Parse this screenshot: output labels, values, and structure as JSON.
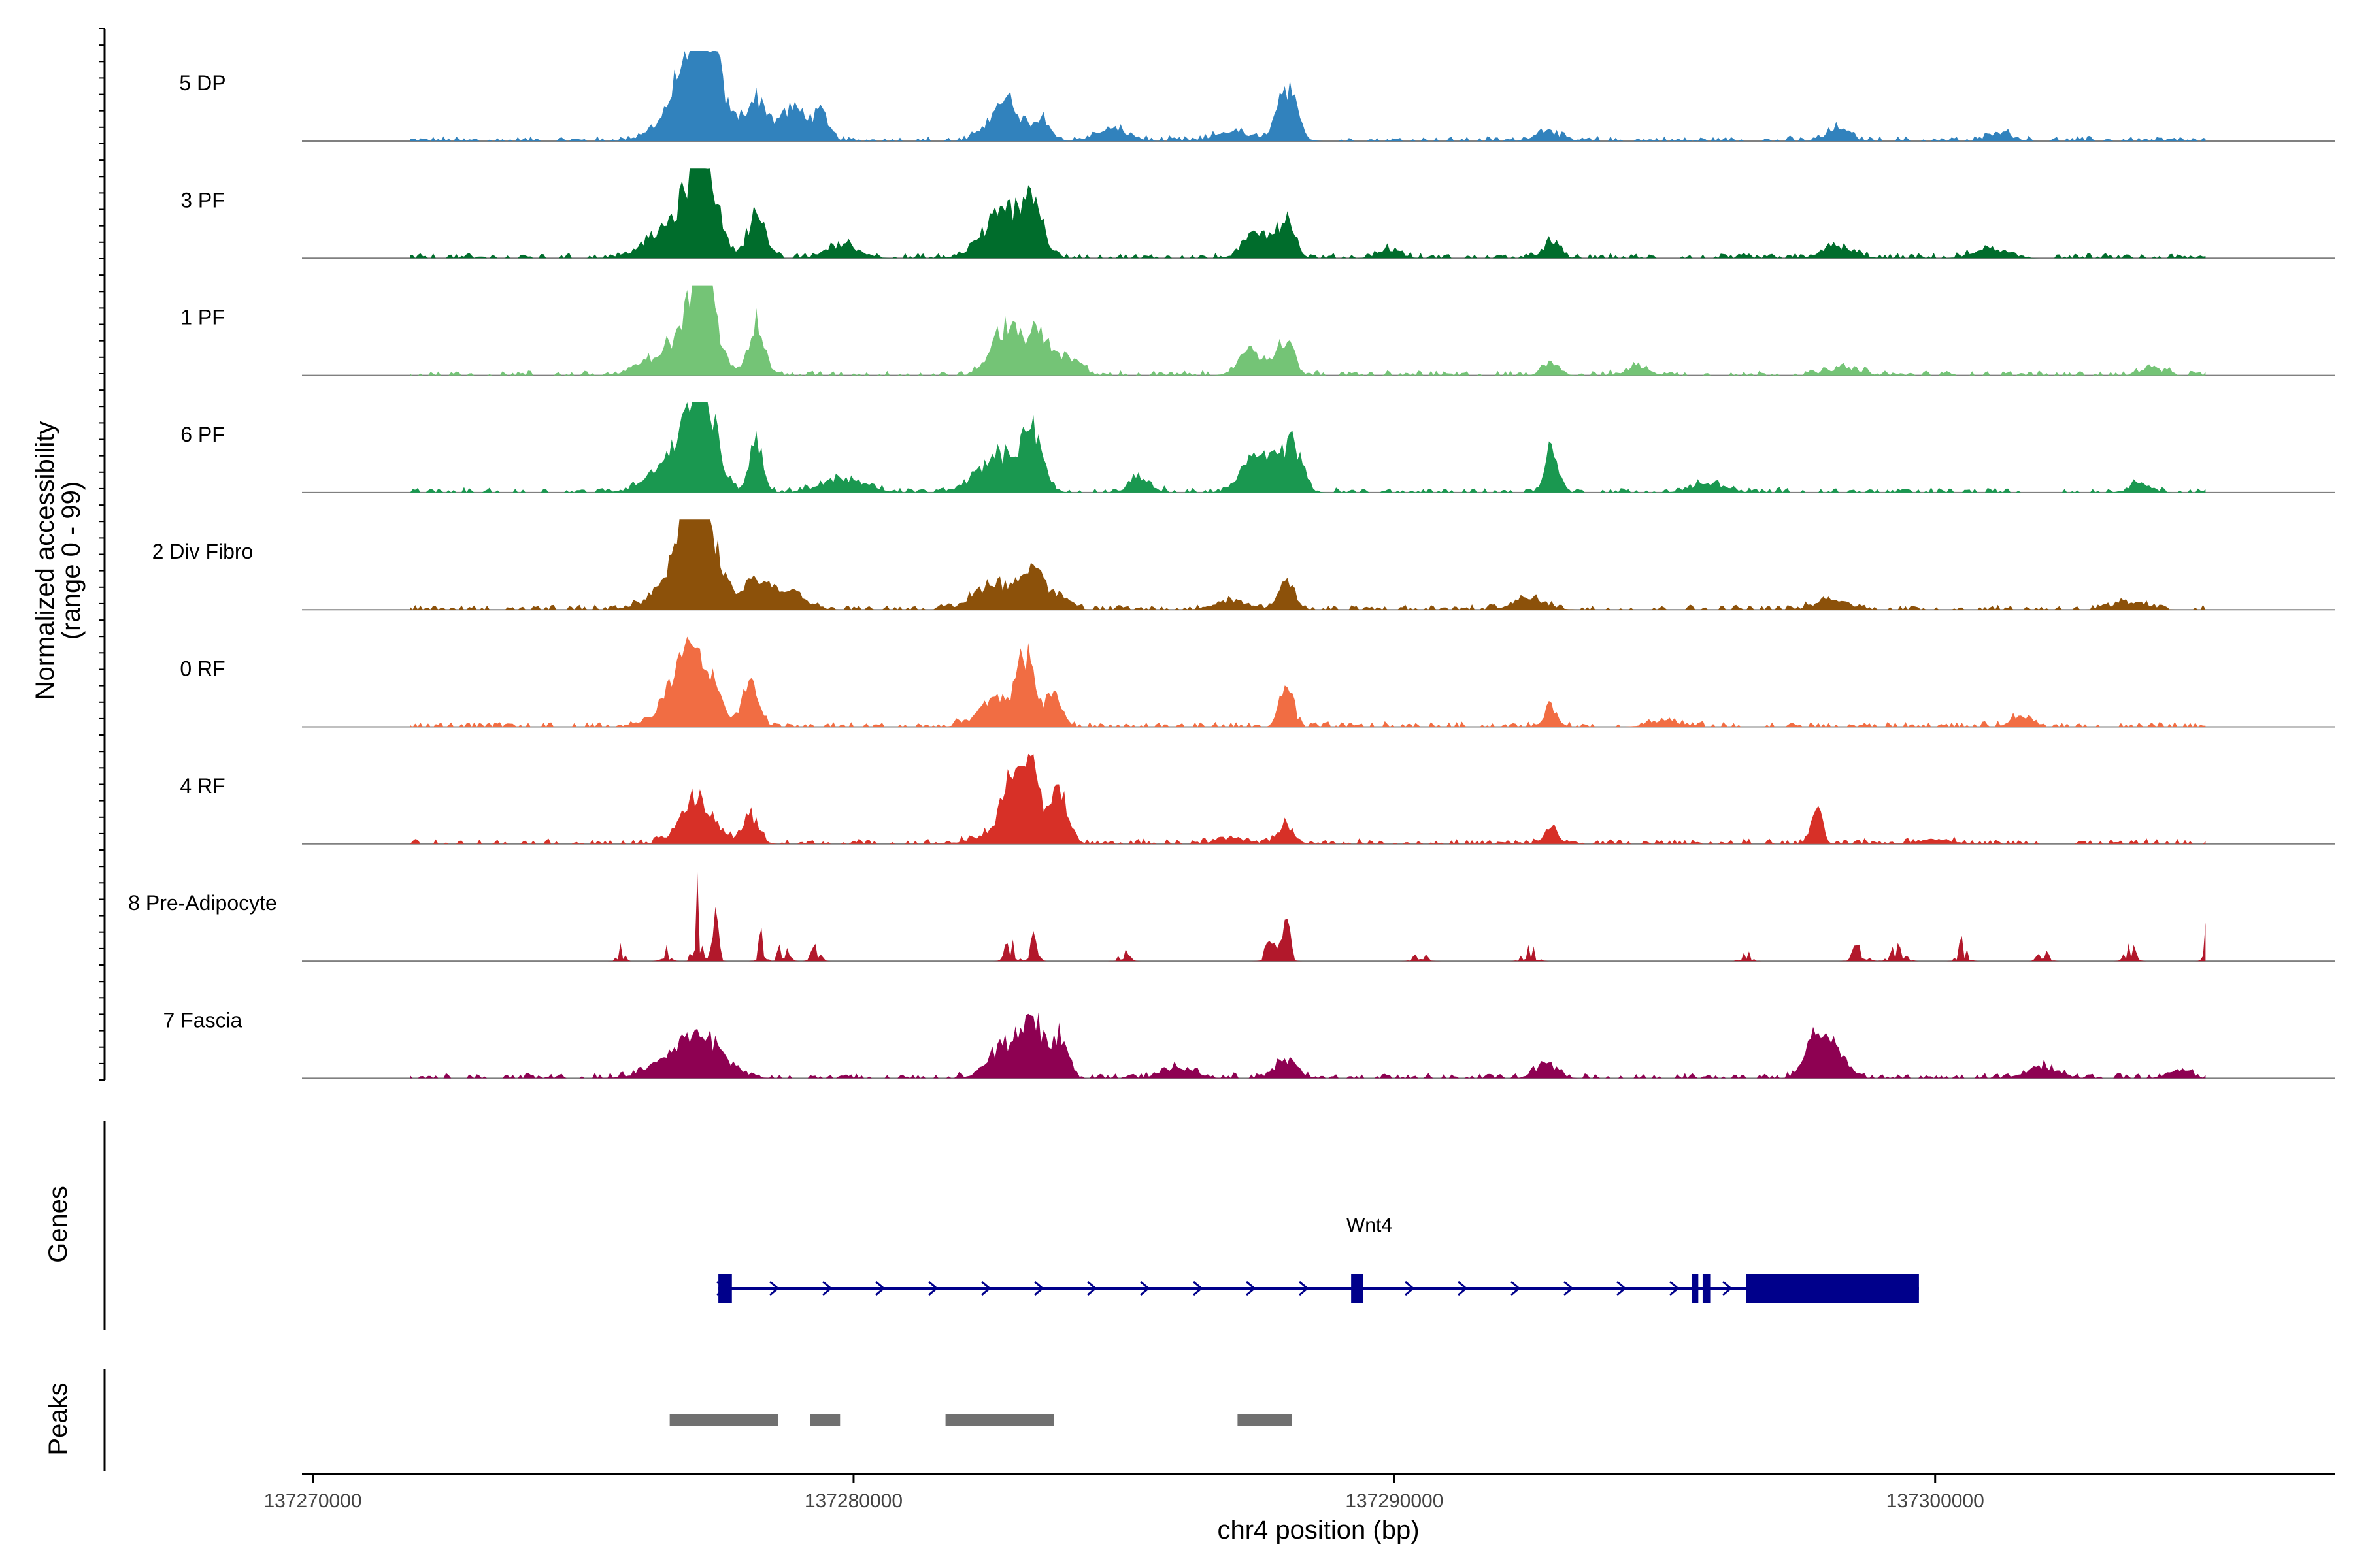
{
  "chart_data": {
    "type": "coverage",
    "xlabel": "chr4 position (bp)",
    "ylabel_line1": "Normalized accessibility",
    "ylabel_line2": "(range 0 - 99)",
    "genes_label": "Genes",
    "peaks_label": "Peaks",
    "xlim": [
      137269800,
      137307400
    ],
    "xticks": [
      {
        "value": 137270000,
        "label": "137270000"
      },
      {
        "value": 137280000,
        "label": "137280000"
      },
      {
        "value": 137290000,
        "label": "137290000"
      },
      {
        "value": 137300000,
        "label": "137300000"
      }
    ],
    "data_range": [
      137271800,
      137305000
    ],
    "tracks": [
      {
        "name": "5 DP",
        "color": "#3182bd",
        "peaks": [
          [
            137277200,
            0.95,
            280
          ],
          [
            137277000,
            0.55,
            450
          ],
          [
            137278200,
            0.45,
            200
          ],
          [
            137278900,
            0.35,
            250
          ],
          [
            137279400,
            0.25,
            150
          ],
          [
            137282800,
            0.45,
            280
          ],
          [
            137283500,
            0.25,
            150
          ],
          [
            137288000,
            0.6,
            180
          ],
          [
            137284800,
            0.12,
            300
          ],
          [
            137287000,
            0.1,
            300
          ],
          [
            137292800,
            0.12,
            200
          ],
          [
            137298200,
            0.14,
            200
          ],
          [
            137301200,
            0.1,
            200
          ]
        ]
      },
      {
        "name": "3 PF",
        "color": "#006d2c",
        "peaks": [
          [
            137277200,
            1.0,
            230
          ],
          [
            137276800,
            0.4,
            500
          ],
          [
            137278200,
            0.5,
            150
          ],
          [
            137279800,
            0.15,
            300
          ],
          [
            137282800,
            0.5,
            380
          ],
          [
            137283300,
            0.55,
            180
          ],
          [
            137287500,
            0.28,
            250
          ],
          [
            137288000,
            0.4,
            150
          ],
          [
            137292900,
            0.18,
            150
          ],
          [
            137289900,
            0.1,
            200
          ],
          [
            137298200,
            0.12,
            300
          ],
          [
            137301000,
            0.09,
            300
          ]
        ]
      },
      {
        "name": "1 PF",
        "color": "#74c476",
        "peaks": [
          [
            137277200,
            1.0,
            220
          ],
          [
            137276800,
            0.35,
            500
          ],
          [
            137278200,
            0.55,
            150
          ],
          [
            137282800,
            0.5,
            250
          ],
          [
            137283400,
            0.42,
            250
          ],
          [
            137284000,
            0.18,
            200
          ],
          [
            137287400,
            0.25,
            250
          ],
          [
            137288000,
            0.35,
            150
          ],
          [
            137292900,
            0.15,
            150
          ],
          [
            137294500,
            0.1,
            200
          ],
          [
            137298300,
            0.08,
            300
          ],
          [
            137304000,
            0.08,
            200
          ]
        ]
      },
      {
        "name": "6 PF",
        "color": "#1a9850",
        "peaks": [
          [
            137277200,
            1.0,
            230
          ],
          [
            137276800,
            0.45,
            450
          ],
          [
            137278200,
            0.6,
            120
          ],
          [
            137279800,
            0.15,
            400
          ],
          [
            137282700,
            0.4,
            400
          ],
          [
            137283300,
            0.6,
            180
          ],
          [
            137285300,
            0.15,
            200
          ],
          [
            137287500,
            0.4,
            300
          ],
          [
            137288100,
            0.5,
            180
          ],
          [
            137292900,
            0.5,
            120
          ],
          [
            137295800,
            0.1,
            300
          ],
          [
            137303800,
            0.1,
            200
          ]
        ]
      },
      {
        "name": "2 Div Fibro",
        "color": "#8c510a",
        "peaks": [
          [
            137277100,
            1.0,
            280
          ],
          [
            137277000,
            0.45,
            500
          ],
          [
            137278200,
            0.3,
            200
          ],
          [
            137278800,
            0.2,
            300
          ],
          [
            137282600,
            0.3,
            350
          ],
          [
            137283300,
            0.45,
            200
          ],
          [
            137283800,
            0.15,
            200
          ],
          [
            137288000,
            0.35,
            150
          ],
          [
            137287000,
            0.1,
            300
          ],
          [
            137292500,
            0.12,
            300
          ],
          [
            137298100,
            0.1,
            300
          ],
          [
            137303600,
            0.08,
            300
          ]
        ]
      },
      {
        "name": "0 RF",
        "color": "#f16d43",
        "peaks": [
          [
            137277100,
            0.7,
            300
          ],
          [
            137276800,
            0.3,
            400
          ],
          [
            137278100,
            0.45,
            150
          ],
          [
            137282700,
            0.3,
            350
          ],
          [
            137283200,
            0.7,
            150
          ],
          [
            137283700,
            0.35,
            150
          ],
          [
            137288000,
            0.5,
            120
          ],
          [
            137292900,
            0.2,
            120
          ],
          [
            137301600,
            0.1,
            200
          ],
          [
            137295000,
            0.06,
            300
          ]
        ]
      },
      {
        "name": "4 RF",
        "color": "#d73027",
        "peaks": [
          [
            137277100,
            0.5,
            300
          ],
          [
            137278100,
            0.3,
            150
          ],
          [
            137282900,
            0.6,
            160
          ],
          [
            137283300,
            1.0,
            120
          ],
          [
            137283800,
            0.55,
            150
          ],
          [
            137283000,
            0.2,
            500
          ],
          [
            137288000,
            0.2,
            150
          ],
          [
            137292900,
            0.2,
            120
          ],
          [
            137297800,
            0.38,
            100
          ],
          [
            137287000,
            0.06,
            300
          ],
          [
            137300000,
            0.05,
            300
          ]
        ]
      },
      {
        "name": "8 Pre-Adipocyte",
        "color": "#b2182b",
        "peaks": [
          [
            137277100,
            1.0,
            60
          ],
          [
            137277450,
            0.6,
            60
          ],
          [
            137276500,
            0.2,
            80
          ],
          [
            137278300,
            0.45,
            60
          ],
          [
            137278700,
            0.25,
            80
          ],
          [
            137279300,
            0.25,
            70
          ],
          [
            137282900,
            0.35,
            80
          ],
          [
            137283300,
            0.3,
            80
          ],
          [
            137288000,
            0.45,
            80
          ],
          [
            137287700,
            0.25,
            100
          ],
          [
            137292500,
            0.2,
            100
          ],
          [
            137298600,
            0.25,
            100
          ],
          [
            137299300,
            0.2,
            120
          ],
          [
            137300500,
            0.25,
            80
          ],
          [
            137303600,
            0.25,
            80
          ],
          [
            137305000,
            0.6,
            50
          ],
          [
            137275700,
            0.18,
            60
          ],
          [
            137296500,
            0.15,
            80
          ],
          [
            137302000,
            0.2,
            80
          ],
          [
            137285000,
            0.15,
            80
          ],
          [
            137290500,
            0.15,
            100
          ]
        ]
      },
      {
        "name": "7 Fascia",
        "color": "#8e0152",
        "peaks": [
          [
            137277200,
            0.35,
            400
          ],
          [
            137276800,
            0.2,
            500
          ],
          [
            137282800,
            0.35,
            300
          ],
          [
            137283300,
            0.6,
            200
          ],
          [
            137283800,
            0.45,
            150
          ],
          [
            137297800,
            0.45,
            200
          ],
          [
            137298200,
            0.25,
            200
          ],
          [
            137288000,
            0.2,
            200
          ],
          [
            137286000,
            0.12,
            300
          ],
          [
            137292800,
            0.15,
            200
          ],
          [
            137302000,
            0.12,
            300
          ],
          [
            137304500,
            0.1,
            200
          ]
        ]
      }
    ],
    "gene": {
      "name": "Wnt4",
      "strand": "+",
      "start": 137277500,
      "end": 137299700,
      "exons": [
        [
          137277500,
          137277750
        ],
        [
          137289200,
          137289420
        ],
        [
          137295500,
          137295620
        ],
        [
          137295700,
          137295840
        ],
        [
          137296500,
          137299700
        ]
      ]
    },
    "peak_regions": [
      [
        137276600,
        137278600
      ],
      [
        137279200,
        137279750
      ],
      [
        137281700,
        137283700
      ],
      [
        137287100,
        137288100
      ]
    ]
  }
}
